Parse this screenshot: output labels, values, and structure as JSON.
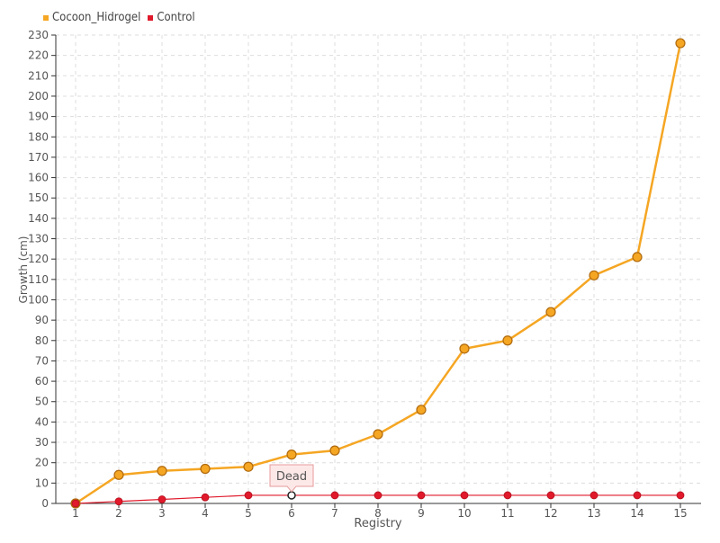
{
  "chart_data": {
    "type": "line",
    "xlabel": "Registry",
    "ylabel": "Growth (cm)",
    "categories": [
      "1",
      "2",
      "3",
      "4",
      "5",
      "6",
      "7",
      "8",
      "9",
      "10",
      "11",
      "12",
      "13",
      "14",
      "15"
    ],
    "ylim": [
      0,
      230
    ],
    "ytick_step": 10,
    "grid": true,
    "legend_position": "top-left",
    "series": [
      {
        "name": "Cocoon_Hidrogel",
        "color": "#f5a623",
        "values": [
          0,
          14,
          16,
          17,
          18,
          24,
          26,
          34,
          46,
          76,
          80,
          94,
          112,
          121,
          226
        ]
      },
      {
        "name": "Control",
        "color": "#e0192b",
        "values": [
          0,
          1,
          2,
          3,
          4,
          4,
          4,
          4,
          4,
          4,
          4,
          4,
          4,
          4,
          4
        ]
      }
    ],
    "annotations": [
      {
        "series": "Control",
        "category": "6",
        "text": "Dead"
      }
    ]
  }
}
